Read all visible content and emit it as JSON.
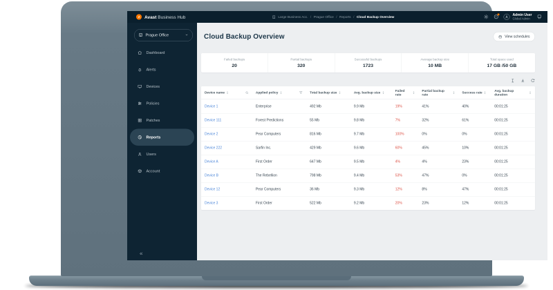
{
  "topbar": {
    "brand_bold": "Avast",
    "brand_rest": "Business Hub",
    "breadcrumb": [
      "Large Business Acc.",
      "Prague Office",
      "Reports",
      "Cloud Backup Overview"
    ],
    "user": {
      "name": "Admin User",
      "role": "Global Admin"
    }
  },
  "sidebar": {
    "site_selector": "Prague Office",
    "items": [
      {
        "label": "Dashboard",
        "icon": "home-icon"
      },
      {
        "label": "Alerts",
        "icon": "bell-icon"
      },
      {
        "label": "Devices",
        "icon": "monitor-icon"
      },
      {
        "label": "Policies",
        "icon": "sliders-icon"
      },
      {
        "label": "Patches",
        "icon": "patches-icon"
      },
      {
        "label": "Reports",
        "icon": "pie-chart-icon"
      },
      {
        "label": "Users",
        "icon": "user-icon"
      },
      {
        "label": "Account",
        "icon": "box-icon"
      }
    ],
    "active": "Reports",
    "collapse_glyph": "«"
  },
  "page": {
    "title": "Cloud Backup Overview",
    "view_schedules_label": "View schedules"
  },
  "stats": [
    {
      "label": "Failed backups",
      "value": "20"
    },
    {
      "label": "Partial backups",
      "value": "320"
    },
    {
      "label": "Successful backups",
      "value": "1723"
    },
    {
      "label": "Average backup size",
      "value": "10 MB"
    },
    {
      "label": "Total space used",
      "value": "17 GB /50 GB"
    }
  ],
  "toolbar": {
    "icons": [
      "columns-icon",
      "download-icon",
      "refresh-icon"
    ]
  },
  "table": {
    "columns": [
      {
        "label": "Device name",
        "trail": "search-icon"
      },
      {
        "label": "Applied policy",
        "trail": "filter-icon"
      },
      {
        "label": "Total backup size"
      },
      {
        "label": "Avg. backup size"
      },
      {
        "label": "Failed rate"
      },
      {
        "label": "Partial backup rate"
      },
      {
        "label": "Success rate"
      },
      {
        "label": "Avg. backup duration"
      }
    ],
    "rows": [
      {
        "device": "Device 1",
        "policy": "Enterprise",
        "total": "492 Mb",
        "avg": "9.9 Mb",
        "failed": "19%",
        "partial": "41%",
        "success": "40%",
        "duration": "00:01:25"
      },
      {
        "device": "Device 111",
        "policy": "Forest Predictions",
        "total": "55 Mb",
        "avg": "9.8 Mb",
        "failed": "7%",
        "partial": "32%",
        "success": "61%",
        "duration": "00:01:25"
      },
      {
        "device": "Device 2",
        "policy": "Pear Computers",
        "total": "816 Mb",
        "avg": "9.7 Mb",
        "failed": "100%",
        "partial": "0%",
        "success": "0%",
        "duration": "00:01:25"
      },
      {
        "device": "Device 222",
        "policy": "Sarfin Inc.",
        "total": "429 Mb",
        "avg": "9.6 Mb",
        "failed": "60%",
        "partial": "45%",
        "success": "10%",
        "duration": "00:01:25"
      },
      {
        "device": "Device A",
        "policy": "First Order",
        "total": "647 Mb",
        "avg": "9.5 Mb",
        "failed": "4%",
        "partial": "4%",
        "success": "23%",
        "duration": "00:01:25"
      },
      {
        "device": "Device B",
        "policy": "The Rebellion",
        "total": "798 Mb",
        "avg": "9.4 Mb",
        "failed": "53%",
        "partial": "47%",
        "success": "0%",
        "duration": "00:01:25"
      },
      {
        "device": "Device 12",
        "policy": "Pear Computers",
        "total": "36 Mb",
        "avg": "9.3 Mb",
        "failed": "12%",
        "partial": "8%",
        "success": "47%",
        "duration": "00:01:25"
      },
      {
        "device": "Device 3",
        "policy": "First Order",
        "total": "522 Mb",
        "avg": "9.2 Mb",
        "failed": "20%",
        "partial": "23%",
        "success": "12%",
        "duration": "00:01:25"
      }
    ]
  },
  "colors": {
    "accent_orange": "#ff7800",
    "dark_navy": "#0e2433",
    "link_blue": "#4c86d8",
    "failed_red": "#dd5246"
  }
}
